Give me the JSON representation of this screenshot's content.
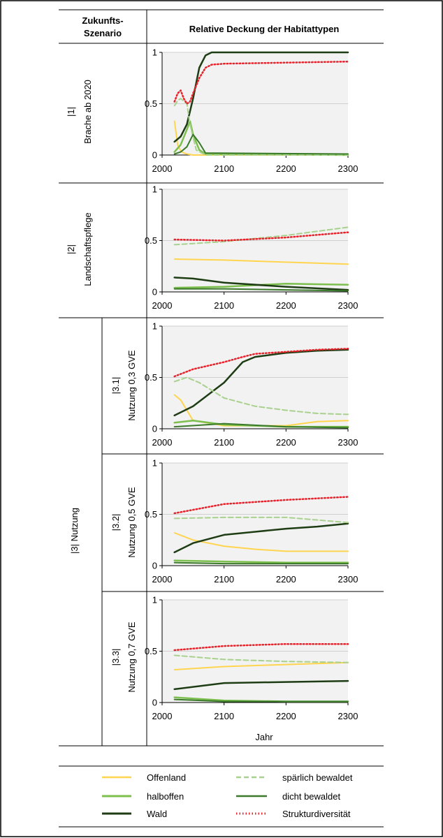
{
  "header": {
    "scenario_line1": "Zukunfts-",
    "scenario_line2": "Szenario",
    "title": "Relative Deckung der Habitattypen"
  },
  "scenarios": {
    "s1": {
      "number": "|1|",
      "name": "Brache ab 2020"
    },
    "s2": {
      "number": "|2|",
      "name": "Landschaftspflege"
    },
    "s3": {
      "label": "|3| Nutzung"
    },
    "s31": {
      "number": "|3.1|",
      "name": "Nutzung 0,3 GVE"
    },
    "s32": {
      "number": "|3.2|",
      "name": "Nutzung 0,5 GVE"
    },
    "s33": {
      "number": "|3.3|",
      "name": "Nutzung 0,7 GVE"
    }
  },
  "xlabel": "Jahr",
  "colors": {
    "offenland": "#ffd54f",
    "halboffen": "#7cbf4d",
    "wald": "#1e3d14",
    "spaerlich": "#a9d18e",
    "dicht": "#3b7a2a",
    "struktur": "#e8212a",
    "plot_bg": "#f2f2f2",
    "grid": "#cfcfcf"
  },
  "legend": {
    "offenland": "Offenland",
    "halboffen": "halboffen",
    "wald": "Wald",
    "spaerlich": "spärlich bewaldet",
    "dicht": "dicht bewaldet",
    "struktur": "Strukturdiversität"
  },
  "chart_data": [
    {
      "type": "line",
      "id": "s1",
      "xlim": [
        2000,
        2300
      ],
      "ylim": [
        0,
        1
      ],
      "xticks": [
        "2000",
        "2100",
        "2200",
        "2300"
      ],
      "yticks": [
        "0",
        "0.5",
        "1"
      ],
      "series": [
        {
          "key": "offenland",
          "x": [
            2020,
            2025,
            2030,
            2035,
            2040,
            2050,
            2060,
            2300
          ],
          "y": [
            0.33,
            0.1,
            0.04,
            0.02,
            0.01,
            0.0,
            0.0,
            0.0
          ]
        },
        {
          "key": "halboffen",
          "x": [
            2020,
            2030,
            2040,
            2045,
            2050,
            2060,
            2070,
            2300
          ],
          "y": [
            0.03,
            0.1,
            0.25,
            0.33,
            0.2,
            0.05,
            0.01,
            0.0
          ]
        },
        {
          "key": "wald",
          "x": [
            2020,
            2030,
            2040,
            2050,
            2060,
            2070,
            2080,
            2100,
            2300
          ],
          "y": [
            0.13,
            0.18,
            0.3,
            0.55,
            0.85,
            0.97,
            1.0,
            1.0,
            1.0
          ]
        },
        {
          "key": "spaerlich",
          "x": [
            2020,
            2025,
            2030,
            2040,
            2045,
            2055,
            2070,
            2300
          ],
          "y": [
            0.48,
            0.53,
            0.55,
            0.5,
            0.3,
            0.05,
            0.0,
            0.0
          ]
        },
        {
          "key": "dicht",
          "x": [
            2020,
            2030,
            2040,
            2050,
            2060,
            2070,
            2300
          ],
          "y": [
            0.01,
            0.03,
            0.08,
            0.2,
            0.12,
            0.02,
            0.01
          ]
        },
        {
          "key": "struktur",
          "x": [
            2020,
            2025,
            2030,
            2035,
            2040,
            2045,
            2050,
            2060,
            2070,
            2080,
            2100,
            2200,
            2300
          ],
          "y": [
            0.52,
            0.6,
            0.63,
            0.55,
            0.5,
            0.52,
            0.6,
            0.75,
            0.85,
            0.88,
            0.89,
            0.9,
            0.91
          ]
        }
      ]
    },
    {
      "type": "line",
      "id": "s2",
      "xlim": [
        2000,
        2300
      ],
      "ylim": [
        0,
        1
      ],
      "xticks": [
        "2000",
        "2100",
        "2200",
        "2300"
      ],
      "yticks": [
        "0",
        "0.5",
        "1"
      ],
      "series": [
        {
          "key": "offenland",
          "x": [
            2020,
            2100,
            2200,
            2300
          ],
          "y": [
            0.32,
            0.31,
            0.29,
            0.27
          ]
        },
        {
          "key": "halboffen",
          "x": [
            2020,
            2100,
            2200,
            2300
          ],
          "y": [
            0.04,
            0.05,
            0.08,
            0.07
          ]
        },
        {
          "key": "wald",
          "x": [
            2020,
            2050,
            2100,
            2200,
            2300
          ],
          "y": [
            0.14,
            0.13,
            0.09,
            0.05,
            0.02
          ]
        },
        {
          "key": "spaerlich",
          "x": [
            2020,
            2100,
            2200,
            2300
          ],
          "y": [
            0.46,
            0.49,
            0.55,
            0.63
          ]
        },
        {
          "key": "dicht",
          "x": [
            2020,
            2100,
            2200,
            2300
          ],
          "y": [
            0.03,
            0.03,
            0.02,
            0.01
          ]
        },
        {
          "key": "struktur",
          "x": [
            2020,
            2100,
            2200,
            2300
          ],
          "y": [
            0.51,
            0.5,
            0.53,
            0.58
          ]
        }
      ]
    },
    {
      "type": "line",
      "id": "s31",
      "xlim": [
        2000,
        2300
      ],
      "ylim": [
        0,
        1
      ],
      "xticks": [
        "2000",
        "2100",
        "2200",
        "2300"
      ],
      "yticks": [
        "0",
        "0.5",
        "1"
      ],
      "series": [
        {
          "key": "offenland",
          "x": [
            2020,
            2030,
            2050,
            2100,
            2200,
            2250,
            2300
          ],
          "y": [
            0.33,
            0.28,
            0.08,
            0.03,
            0.03,
            0.07,
            0.08
          ]
        },
        {
          "key": "halboffen",
          "x": [
            2020,
            2050,
            2100,
            2150,
            2200,
            2300
          ],
          "y": [
            0.06,
            0.08,
            0.04,
            0.03,
            0.02,
            0.02
          ]
        },
        {
          "key": "wald",
          "x": [
            2020,
            2050,
            2100,
            2130,
            2150,
            2200,
            2250,
            2300
          ],
          "y": [
            0.13,
            0.22,
            0.45,
            0.65,
            0.7,
            0.74,
            0.76,
            0.77
          ]
        },
        {
          "key": "spaerlich",
          "x": [
            2020,
            2040,
            2060,
            2100,
            2150,
            2200,
            2250,
            2300
          ],
          "y": [
            0.46,
            0.5,
            0.45,
            0.3,
            0.22,
            0.18,
            0.15,
            0.14
          ]
        },
        {
          "key": "dicht",
          "x": [
            2020,
            2100,
            2200,
            2300
          ],
          "y": [
            0.02,
            0.05,
            0.02,
            0.01
          ]
        },
        {
          "key": "struktur",
          "x": [
            2020,
            2050,
            2100,
            2130,
            2150,
            2200,
            2250,
            2300
          ],
          "y": [
            0.51,
            0.58,
            0.65,
            0.7,
            0.73,
            0.75,
            0.77,
            0.78
          ]
        }
      ]
    },
    {
      "type": "line",
      "id": "s32",
      "xlim": [
        2000,
        2300
      ],
      "ylim": [
        0,
        1
      ],
      "xticks": [
        "2000",
        "2100",
        "2200",
        "2300"
      ],
      "yticks": [
        "0",
        "0.5",
        "1"
      ],
      "series": [
        {
          "key": "offenland",
          "x": [
            2020,
            2050,
            2100,
            2150,
            2200,
            2300
          ],
          "y": [
            0.32,
            0.25,
            0.19,
            0.16,
            0.14,
            0.14
          ]
        },
        {
          "key": "halboffen",
          "x": [
            2020,
            2100,
            2200,
            2300
          ],
          "y": [
            0.05,
            0.04,
            0.03,
            0.03
          ]
        },
        {
          "key": "wald",
          "x": [
            2020,
            2050,
            2100,
            2150,
            2200,
            2250,
            2300
          ],
          "y": [
            0.13,
            0.22,
            0.3,
            0.33,
            0.36,
            0.38,
            0.41
          ]
        },
        {
          "key": "spaerlich",
          "x": [
            2020,
            2100,
            2200,
            2300
          ],
          "y": [
            0.46,
            0.47,
            0.47,
            0.42
          ]
        },
        {
          "key": "dicht",
          "x": [
            2020,
            2100,
            2200,
            2300
          ],
          "y": [
            0.03,
            0.02,
            0.02,
            0.02
          ]
        },
        {
          "key": "struktur",
          "x": [
            2020,
            2100,
            2200,
            2300
          ],
          "y": [
            0.51,
            0.6,
            0.64,
            0.67
          ]
        }
      ]
    },
    {
      "type": "line",
      "id": "s33",
      "xlim": [
        2000,
        2300
      ],
      "ylim": [
        0,
        1
      ],
      "xticks": [
        "2000",
        "2100",
        "2200",
        "2300"
      ],
      "yticks": [
        "0",
        "0.5",
        "1"
      ],
      "series": [
        {
          "key": "offenland",
          "x": [
            2020,
            2100,
            2200,
            2300
          ],
          "y": [
            0.32,
            0.35,
            0.37,
            0.39
          ]
        },
        {
          "key": "halboffen",
          "x": [
            2020,
            2100,
            2200,
            2300
          ],
          "y": [
            0.05,
            0.02,
            0.01,
            0.01
          ]
        },
        {
          "key": "wald",
          "x": [
            2020,
            2100,
            2200,
            2300
          ],
          "y": [
            0.13,
            0.19,
            0.2,
            0.21
          ]
        },
        {
          "key": "spaerlich",
          "x": [
            2020,
            2100,
            2200,
            2300
          ],
          "y": [
            0.46,
            0.42,
            0.4,
            0.39
          ]
        },
        {
          "key": "dicht",
          "x": [
            2020,
            2100,
            2200,
            2300
          ],
          "y": [
            0.03,
            0.01,
            0.01,
            0.01
          ]
        },
        {
          "key": "struktur",
          "x": [
            2020,
            2100,
            2200,
            2300
          ],
          "y": [
            0.51,
            0.55,
            0.57,
            0.57
          ]
        }
      ]
    }
  ]
}
